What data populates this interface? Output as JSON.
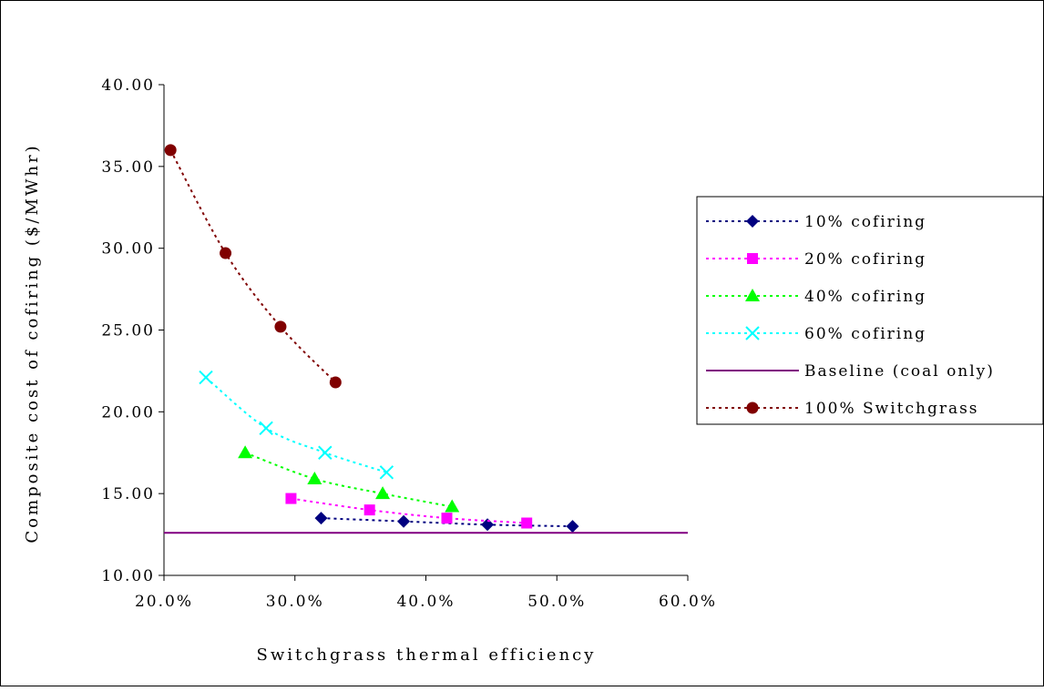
{
  "chart_data": {
    "type": "line",
    "xlabel": "Switchgrass thermal efficiency",
    "ylabel": "Composite cost of cofiring ($/MWhr)",
    "xlim": [
      0.2,
      0.6
    ],
    "ylim": [
      10,
      40
    ],
    "x_ticks": [
      "20.0%",
      "30.0%",
      "40.0%",
      "50.0%",
      "60.0%"
    ],
    "y_ticks": [
      "10.00",
      "15.00",
      "20.00",
      "25.00",
      "30.00",
      "35.00",
      "40.00"
    ],
    "grid": false,
    "legend_position": "right",
    "series": [
      {
        "name": "10% cofiring",
        "color": "#000080",
        "marker": "diamond",
        "line": "dotted",
        "x": [
          0.32,
          0.383,
          0.447,
          0.512
        ],
        "y": [
          13.5,
          13.3,
          13.1,
          13.0
        ]
      },
      {
        "name": "20% cofiring",
        "color": "#ff00ff",
        "marker": "square",
        "line": "dotted",
        "x": [
          0.297,
          0.357,
          0.416,
          0.477
        ],
        "y": [
          14.7,
          14.0,
          13.5,
          13.2
        ]
      },
      {
        "name": "40% cofiring",
        "color": "#00ff00",
        "marker": "triangle",
        "line": "dotted",
        "x": [
          0.262,
          0.315,
          0.367,
          0.42
        ],
        "y": [
          17.5,
          15.9,
          15.0,
          14.2
        ]
      },
      {
        "name": "60% cofiring",
        "color": "#00ffff",
        "marker": "x",
        "line": "dotted",
        "x": [
          0.232,
          0.278,
          0.323,
          0.37
        ],
        "y": [
          22.1,
          19.0,
          17.5,
          16.3
        ]
      },
      {
        "name": "Baseline (coal only)",
        "color": "#800080",
        "marker": "none",
        "line": "solid",
        "x": [
          0.2,
          0.6
        ],
        "y": [
          12.6,
          12.6
        ]
      },
      {
        "name": "100% Switchgrass",
        "color": "#800000",
        "marker": "circle",
        "line": "dotted",
        "x": [
          0.205,
          0.247,
          0.289,
          0.331
        ],
        "y": [
          36.0,
          29.7,
          25.2,
          21.8
        ]
      }
    ]
  }
}
